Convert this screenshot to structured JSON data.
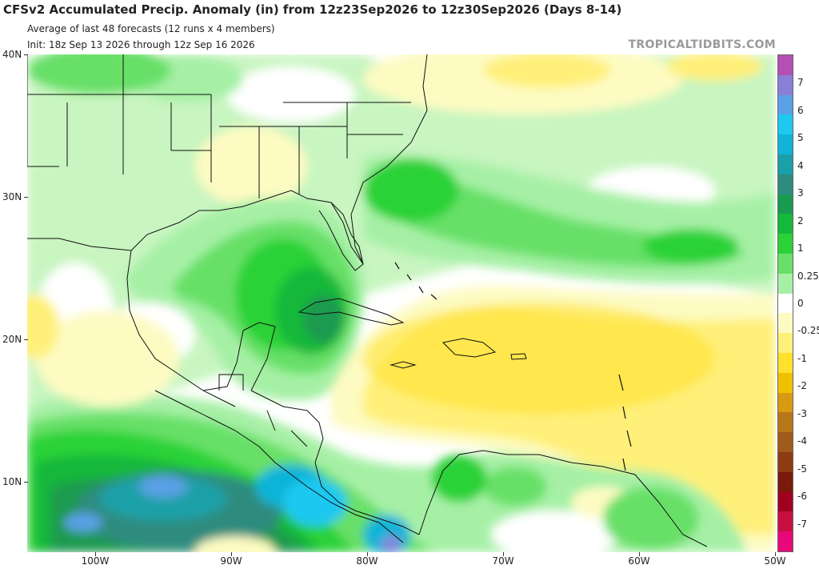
{
  "header": {
    "title": "CFSv2 Accumulated Precip. Anomaly (in) from 12z23Sep2026 to 12z30Sep2026 (Days 8-14)",
    "subtitle1": "Average of last 48 forecasts (12 runs x 4 members)",
    "subtitle2": "Init: 18z Sep 13 2026 through 12z Sep 16 2026",
    "brand": "TROPICALTIDBITS.COM"
  },
  "axes": {
    "lat_labels": [
      "40N",
      "30N",
      "20N",
      "10N"
    ],
    "lon_labels": [
      "100W",
      "90W",
      "80W",
      "70W",
      "60W",
      "50W"
    ]
  },
  "colorbar": {
    "labels": [
      "7",
      "6",
      "5",
      "4",
      "3",
      "2",
      "1",
      "0.25",
      "0",
      "-0.25",
      "-1",
      "-2",
      "-3",
      "-4",
      "-5",
      "-6",
      "-7"
    ],
    "colors": [
      "#b44fb4",
      "#8a7fd8",
      "#5aa0e6",
      "#1ec8f0",
      "#10b4d8",
      "#1aa0a8",
      "#2e8c7e",
      "#1a9a50",
      "#14b83a",
      "#2ad238",
      "#68e068",
      "#a6f0a6",
      "#ffffff",
      "#fdfbc2",
      "#fff07a",
      "#ffe02a",
      "#f0c000",
      "#d89a10",
      "#b8761a",
      "#a05a1a",
      "#8e3c12",
      "#7a1a0a",
      "#a00020",
      "#c81040",
      "#e8087a"
    ]
  }
}
